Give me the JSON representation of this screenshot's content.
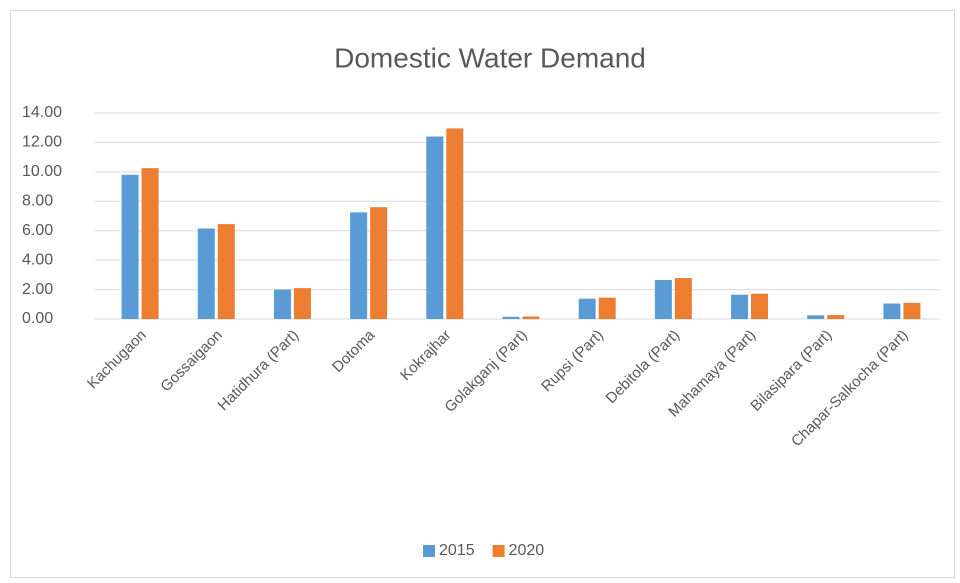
{
  "chart_data": {
    "type": "bar",
    "title": "Domestic Water Demand",
    "categories": [
      "Kachugaon",
      "Gossaigaon",
      "Hatidhura (Part)",
      "Dotoma",
      "Kokrajhar",
      "Golakganj (Part)",
      "Rupsi (Part)",
      "Debitola (Part)",
      "Mahamaya (Part)",
      "Bilasipara (Part)",
      "Chapar-Salkocha (Part)"
    ],
    "series": [
      {
        "name": "2015",
        "color": "#5b9bd5",
        "values": [
          9.8,
          6.15,
          2.0,
          7.25,
          12.4,
          0.15,
          1.38,
          2.65,
          1.65,
          0.25,
          1.05
        ]
      },
      {
        "name": "2020",
        "color": "#ed7d31",
        "values": [
          10.25,
          6.45,
          2.1,
          7.6,
          12.95,
          0.17,
          1.45,
          2.78,
          1.72,
          0.27,
          1.1
        ]
      }
    ],
    "ylim": [
      0,
      14
    ],
    "yticks": [
      {
        "value": 0,
        "label": "0.00"
      },
      {
        "value": 2,
        "label": "2.00"
      },
      {
        "value": 4,
        "label": "4.00"
      },
      {
        "value": 6,
        "label": "6.00"
      },
      {
        "value": 8,
        "label": "8.00"
      },
      {
        "value": 10,
        "label": "10.00"
      },
      {
        "value": 12,
        "label": "12.00"
      },
      {
        "value": 14,
        "label": "14.00"
      }
    ],
    "grid": true,
    "legend": "bottom"
  }
}
